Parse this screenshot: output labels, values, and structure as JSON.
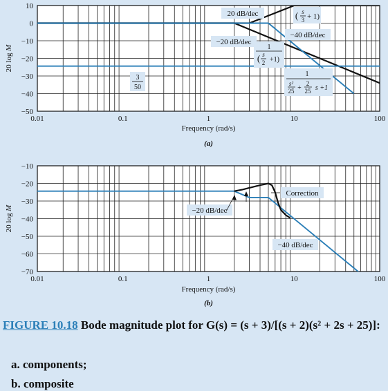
{
  "chart_data": [
    {
      "id": "a",
      "type": "line",
      "panel_label": "(a)",
      "xscale": "log",
      "xlim": [
        0.01,
        100
      ],
      "ylim": [
        -50,
        10
      ],
      "ylabel": "20 log M",
      "xlabel": "Frequency (rad/s)",
      "xticks": [
        "0.01",
        "0.1",
        "1",
        "10",
        "100"
      ],
      "yticks": [
        "10",
        "0",
        "−10",
        "−20",
        "−30",
        "−40",
        "−50"
      ],
      "series": [
        {
          "color": "#111111",
          "points": [
            [
              0.01,
              0
            ],
            [
              2,
              0
            ],
            [
              100,
              -34
            ]
          ]
        },
        {
          "color": "#111111",
          "points": [
            [
              0.01,
              0
            ],
            [
              3,
              0
            ],
            [
              10,
              10
            ],
            [
              100,
              10
            ]
          ]
        },
        {
          "color": "#2b7fb8",
          "points": [
            [
              0.01,
              0
            ],
            [
              5,
              0
            ],
            [
              50,
              -40
            ]
          ]
        },
        {
          "color": "#2b7fb8",
          "points": [
            [
              0.01,
              -24.4
            ],
            [
              100,
              -24.4
            ]
          ]
        }
      ],
      "annotations": [
        {
          "id": "ann-20db-a",
          "text": "20 dB/dec"
        },
        {
          "id": "ann-neg20db-a",
          "text": "−20 dB/dec"
        },
        {
          "id": "ann-neg40db-a",
          "text": "−40 dB/dec"
        },
        {
          "id": "ann-s3",
          "text": "(s/3 + 1)"
        },
        {
          "id": "ann-s2",
          "text": "1 / (s/2 + 1)"
        },
        {
          "id": "ann-quad",
          "text": "1 / (s²/25 + 2/25 s + 1)"
        },
        {
          "id": "ann-350",
          "text": "3/50"
        }
      ]
    },
    {
      "id": "b",
      "type": "line",
      "panel_label": "(b)",
      "xscale": "log",
      "xlim": [
        0.01,
        100
      ],
      "ylim": [
        -70,
        -10
      ],
      "ylabel": "20 log M",
      "xlabel": "Frequency (rad/s)",
      "xticks": [
        "0.01",
        "0.1",
        "1",
        "10",
        "100"
      ],
      "yticks": [
        "−10",
        "−20",
        "−30",
        "−40",
        "−50",
        "−60",
        "−70"
      ],
      "series": [
        {
          "color": "#2b7fb8",
          "points": [
            [
              0.01,
              -24.4
            ],
            [
              2,
              -24.4
            ],
            [
              3,
              -28
            ],
            [
              5,
              -28
            ],
            [
              60,
              -71.2
            ]
          ]
        },
        {
          "color": "#111111",
          "points": [
            [
              2,
              -24.4
            ],
            [
              2.5,
              -23.5
            ],
            [
              3,
              -22.5
            ],
            [
              4,
              -21
            ],
            [
              4.5,
              -20.5
            ],
            [
              5,
              -20
            ],
            [
              5.5,
              -21
            ],
            [
              6,
              -25
            ],
            [
              6.5,
              -31
            ],
            [
              7,
              -35
            ],
            [
              8,
              -38
            ],
            [
              9,
              -39.6
            ]
          ]
        }
      ],
      "annotations": [
        {
          "id": "ann-correction",
          "text": "Correction"
        },
        {
          "id": "ann-neg20db-b",
          "text": "−20 dB/dec"
        },
        {
          "id": "ann-neg40db-b",
          "text": "−40 dB/dec"
        }
      ]
    }
  ],
  "caption": {
    "figure_label": "FIGURE 10.18",
    "title_text": " Bode magnitude plot for G(s) = (s + 3)/[(s + 2)(s² + 2s + 25)]:",
    "items": [
      "a. components;",
      "b. composite"
    ]
  }
}
